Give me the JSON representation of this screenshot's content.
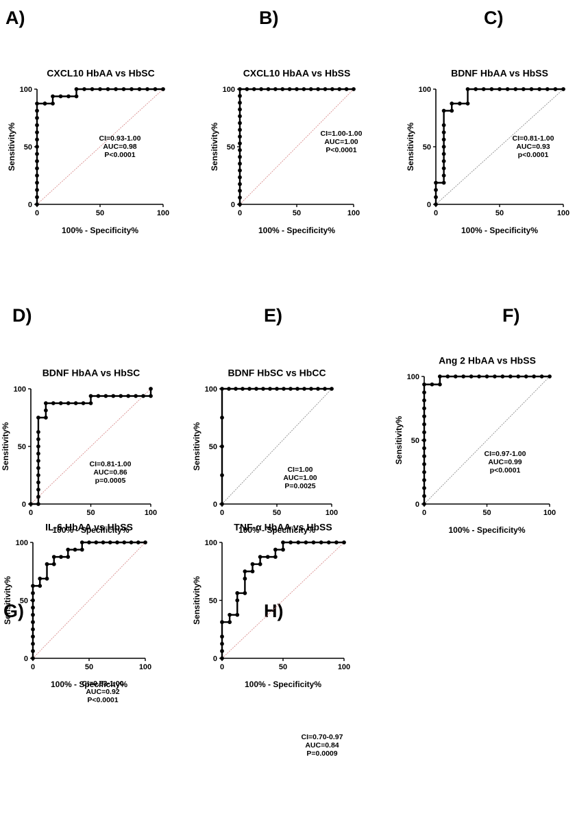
{
  "chart_data": [
    {
      "type": "line",
      "panel": "A)",
      "title": "CXCL10 HbAA vs HbSC",
      "xlabel": "100% - Specificity%",
      "ylabel": "Sensitivity%",
      "xlim": [
        0,
        100
      ],
      "ylim": [
        0,
        100
      ],
      "xticks": [
        "0",
        "50",
        "100"
      ],
      "yticks": [
        "0",
        "50",
        "100"
      ],
      "stats": [
        "CI=0.93-1.00",
        "AUC=0.98",
        "P<0.0001"
      ],
      "reference_line_color": "#d98c8c",
      "curve_color": "#000000",
      "x": [
        0,
        0,
        0,
        0,
        0,
        0,
        0,
        0,
        0,
        0,
        0,
        0,
        0,
        0,
        0,
        6.25,
        6.25,
        12.5,
        12.5,
        18.75,
        25,
        31.25,
        31.25,
        37.5,
        43.75,
        50,
        56.25,
        62.5,
        68.75,
        75,
        81.25,
        87.5,
        93.75,
        100
      ],
      "y": [
        0,
        6.25,
        12.5,
        18.75,
        25,
        31.25,
        37.5,
        43.75,
        50,
        56.25,
        62.5,
        68.75,
        75,
        81.25,
        87.5,
        87.5,
        87.5,
        87.5,
        93.75,
        93.75,
        93.75,
        93.75,
        100,
        100,
        100,
        100,
        100,
        100,
        100,
        100,
        100,
        100,
        100,
        100
      ]
    },
    {
      "type": "line",
      "panel": "B)",
      "title": "CXCL10 HbAA vs HbSS",
      "xlabel": "100% - Specificity%",
      "ylabel": "Sensitivity%",
      "xlim": [
        0,
        100
      ],
      "ylim": [
        0,
        100
      ],
      "xticks": [
        "0",
        "50",
        "100"
      ],
      "yticks": [
        "0",
        "50",
        "100"
      ],
      "stats": [
        "CI=1.00-1.00",
        "AUC=1.00",
        "P<0.0001"
      ],
      "reference_line_color": "#d98c8c",
      "curve_color": "#000000",
      "x": [
        0,
        0,
        0,
        0,
        0,
        0,
        0,
        0,
        0,
        0,
        0,
        0,
        0,
        0,
        0,
        0,
        0,
        0,
        6.25,
        12.5,
        18.75,
        25,
        31.25,
        37.5,
        43.75,
        50,
        56.25,
        62.5,
        68.75,
        75,
        81.25,
        87.5,
        93.75,
        100
      ],
      "y": [
        0,
        5.9,
        11.8,
        17.6,
        23.5,
        29.4,
        35.3,
        41.2,
        47.1,
        52.9,
        58.8,
        64.7,
        70.6,
        76.5,
        82.4,
        88.2,
        94.1,
        100,
        100,
        100,
        100,
        100,
        100,
        100,
        100,
        100,
        100,
        100,
        100,
        100,
        100,
        100,
        100,
        100
      ]
    },
    {
      "type": "line",
      "panel": "C)",
      "title": "BDNF HbAA vs HbSS",
      "xlabel": "100% - Specificity%",
      "ylabel": "Sensitivity%",
      "xlim": [
        0,
        100
      ],
      "ylim": [
        0,
        100
      ],
      "xticks": [
        "0",
        "50",
        "100"
      ],
      "yticks": [
        "0",
        "50",
        "100"
      ],
      "stats": [
        "CI=0.81-1.00",
        "AUC=0.93",
        "p<0.0001"
      ],
      "reference_line_color": "#8c8c8c",
      "curve_color": "#000000",
      "x": [
        0,
        0,
        0,
        0,
        6.25,
        6.25,
        6.25,
        6.25,
        6.25,
        6.25,
        6.25,
        6.25,
        6.25,
        6.25,
        12.5,
        12.5,
        18.75,
        25,
        25,
        31.25,
        37.5,
        43.75,
        50,
        56.25,
        62.5,
        68.75,
        75,
        81.25,
        87.5,
        93.75,
        100
      ],
      "y": [
        0,
        6.25,
        12.5,
        18.75,
        18.75,
        25,
        31.25,
        37.5,
        43.75,
        50,
        56.25,
        62.5,
        68.75,
        81.25,
        81.25,
        87.5,
        87.5,
        87.5,
        100,
        100,
        100,
        100,
        100,
        100,
        100,
        100,
        100,
        100,
        100,
        100,
        100
      ]
    },
    {
      "type": "line",
      "panel": "D)",
      "title": "BDNF HbAA vs HbSC",
      "xlabel": "100% - Specificity%",
      "ylabel": "Sensitivity%",
      "xlim": [
        0,
        100
      ],
      "ylim": [
        0,
        100
      ],
      "xticks": [
        "0",
        "50",
        "100"
      ],
      "yticks": [
        "0",
        "50",
        "100"
      ],
      "stats": [
        "CI=0.81-1.00",
        "AUC=0.86",
        "p=0.0005"
      ],
      "reference_line_color": "#d98c8c",
      "curve_color": "#000000",
      "x": [
        0,
        6.25,
        6.25,
        6.25,
        6.25,
        6.25,
        6.25,
        6.25,
        6.25,
        6.25,
        6.25,
        6.25,
        6.25,
        12.5,
        12.5,
        12.5,
        18.75,
        25,
        31.25,
        37.5,
        43.75,
        50,
        50,
        56.25,
        62.5,
        68.75,
        75,
        81.25,
        87.5,
        93.75,
        100,
        100
      ],
      "y": [
        0,
        0,
        6.25,
        12.5,
        18.75,
        25,
        31.25,
        37.5,
        43.75,
        50,
        56.25,
        62.5,
        75,
        75,
        81.25,
        87.5,
        87.5,
        87.5,
        87.5,
        87.5,
        87.5,
        87.5,
        93.75,
        93.75,
        93.75,
        93.75,
        93.75,
        93.75,
        93.75,
        93.75,
        93.75,
        100
      ]
    },
    {
      "type": "line",
      "panel": "E)",
      "title": "BDNF HbSC vs HbCC",
      "xlabel": "100% - Specificity%",
      "ylabel": "Sensitivity%",
      "xlim": [
        0,
        100
      ],
      "ylim": [
        0,
        100
      ],
      "xticks": [
        "0",
        "50",
        "100"
      ],
      "yticks": [
        "0",
        "50",
        "100"
      ],
      "stats": [
        "CI=1.00",
        "AUC=1.00",
        "P=0.0025"
      ],
      "reference_line_color": "#8c8c8c",
      "curve_color": "#000000",
      "x": [
        0,
        0,
        0,
        0,
        0,
        6.25,
        12.5,
        18.75,
        25,
        31.25,
        37.5,
        43.75,
        50,
        56.25,
        62.5,
        68.75,
        75,
        81.25,
        87.5,
        93.75,
        100
      ],
      "y": [
        0,
        25,
        50,
        75,
        100,
        100,
        100,
        100,
        100,
        100,
        100,
        100,
        100,
        100,
        100,
        100,
        100,
        100,
        100,
        100,
        100
      ]
    },
    {
      "type": "line",
      "panel": "F)",
      "title": "Ang 2 HbAA vs HbSS",
      "xlabel": "100% - Specificity%",
      "ylabel": "Sensitivity%",
      "xlim": [
        0,
        100
      ],
      "ylim": [
        0,
        100
      ],
      "xticks": [
        "0",
        "50",
        "100"
      ],
      "yticks": [
        "0",
        "50",
        "100"
      ],
      "stats": [
        "CI=0.97-1.00",
        "AUC=0.99",
        "p<0.0001"
      ],
      "reference_line_color": "#8c8c8c",
      "curve_color": "#000000",
      "x": [
        0,
        0,
        0,
        0,
        0,
        0,
        0,
        0,
        0,
        0,
        0,
        0,
        0,
        0,
        0,
        0,
        6.25,
        12.5,
        12.5,
        18.75,
        25,
        31.25,
        37.5,
        43.75,
        50,
        56.25,
        62.5,
        68.75,
        75,
        81.25,
        87.5,
        93.75,
        100
      ],
      "y": [
        0,
        6.25,
        12.5,
        18.75,
        25,
        31.25,
        37.5,
        43.75,
        50,
        56.25,
        62.5,
        68.75,
        75,
        81.25,
        87.5,
        93.75,
        93.75,
        93.75,
        100,
        100,
        100,
        100,
        100,
        100,
        100,
        100,
        100,
        100,
        100,
        100,
        100,
        100,
        100
      ]
    },
    {
      "type": "line",
      "panel": "G)",
      "title": "IL-6 HbAA vs HbSS",
      "xlabel": "100% - Specificity%",
      "ylabel": "Sensitivity%",
      "xlim": [
        0,
        100
      ],
      "ylim": [
        0,
        100
      ],
      "xticks": [
        "0",
        "50",
        "100"
      ],
      "yticks": [
        "0",
        "50",
        "100"
      ],
      "stats": [
        "CI=0.83-1.00",
        "AUC=0.92",
        "P<0.0001"
      ],
      "reference_line_color": "#d98c8c",
      "curve_color": "#000000",
      "x": [
        0,
        0,
        0,
        0,
        0,
        0,
        0,
        0,
        0,
        0,
        0,
        6.25,
        6.25,
        12.5,
        12.5,
        18.75,
        18.75,
        25,
        31.25,
        31.25,
        37.5,
        43.75,
        43.75,
        50,
        56.25,
        62.5,
        68.75,
        75,
        81.25,
        87.5,
        93.75,
        100
      ],
      "y": [
        0,
        6.25,
        12.5,
        18.75,
        25,
        31.25,
        37.5,
        43.75,
        50,
        56.25,
        62.5,
        62.5,
        68.75,
        68.75,
        81.25,
        81.25,
        87.5,
        87.5,
        87.5,
        93.75,
        93.75,
        93.75,
        100,
        100,
        100,
        100,
        100,
        100,
        100,
        100,
        100,
        100
      ]
    },
    {
      "type": "line",
      "panel": "H)",
      "title": "TNF-α HbAA vs HbSS",
      "xlabel": "100% - Specificity%",
      "ylabel": "Sensitivity%",
      "xlim": [
        0,
        100
      ],
      "ylim": [
        0,
        100
      ],
      "xticks": [
        "0",
        "50",
        "100"
      ],
      "yticks": [
        "0",
        "50",
        "100"
      ],
      "stats": [
        "CI=0.70-0.97",
        "AUC=0.84",
        "P=0.0009"
      ],
      "reference_line_color": "#d98c8c",
      "curve_color": "#000000",
      "x": [
        0,
        0,
        0,
        0,
        0,
        6.25,
        6.25,
        12.5,
        12.5,
        12.5,
        18.75,
        18.75,
        18.75,
        25,
        25,
        31.25,
        31.25,
        37.5,
        43.75,
        43.75,
        50,
        50,
        56.25,
        62.5,
        68.75,
        75,
        81.25,
        87.5,
        93.75,
        100
      ],
      "y": [
        0,
        6.25,
        12.5,
        18.75,
        31.25,
        31.25,
        37.5,
        37.5,
        50,
        56.25,
        56.25,
        68.75,
        75,
        75,
        81.25,
        81.25,
        87.5,
        87.5,
        87.5,
        93.75,
        93.75,
        100,
        100,
        100,
        100,
        100,
        100,
        100,
        100,
        100
      ]
    }
  ]
}
